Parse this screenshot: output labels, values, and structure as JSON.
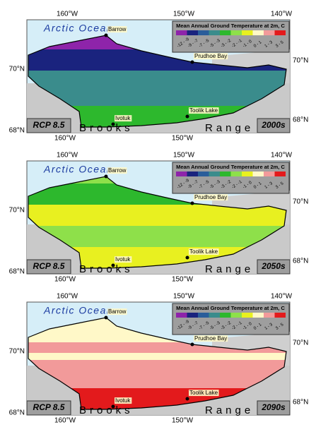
{
  "labels": {
    "longitudes": [
      "160°W",
      "150°W",
      "140°W"
    ],
    "latitudes": [
      "70°N",
      "68°N"
    ],
    "ocean": "Arctic Ocean",
    "range": [
      "Brooks",
      "Range"
    ],
    "places": [
      "Barrow",
      "Prudhoe Bay",
      "Ivotuk",
      "Toolik Lake"
    ]
  },
  "legend": {
    "title": "Mean Annual Ground Temperature at 2m, C",
    "classes": [
      {
        "label": "-12 - -9",
        "color": "#8e24aa"
      },
      {
        "label": "-9 - -7",
        "color": "#1a237e"
      },
      {
        "label": "-7 - -5",
        "color": "#2a5d9a"
      },
      {
        "label": "-5 - -3",
        "color": "#3a8c8c"
      },
      {
        "label": "-3 - -2",
        "color": "#2db82d"
      },
      {
        "label": "-2 - -1",
        "color": "#8ee04a"
      },
      {
        "label": "-1 - 0",
        "color": "#e8f020"
      },
      {
        "label": "0 - 1",
        "color": "#fff8c8"
      },
      {
        "label": "1 - 3",
        "color": "#f29a9a"
      },
      {
        "label": "3 - 5",
        "color": "#e31a1c"
      }
    ]
  },
  "panels": [
    {
      "scenario": "RCP 8.5",
      "period": "2000s"
    },
    {
      "scenario": "RCP 8.5",
      "period": "2050s"
    },
    {
      "scenario": "RCP 8.5",
      "period": "2090s"
    }
  ]
}
